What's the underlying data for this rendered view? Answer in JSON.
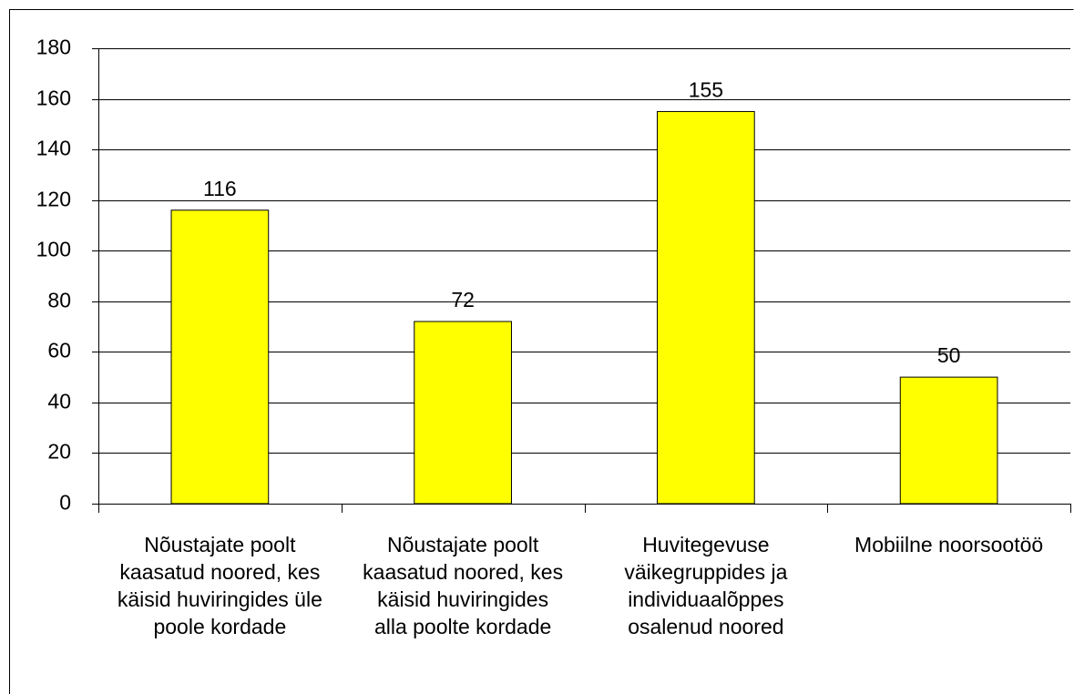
{
  "chart_data": {
    "type": "bar",
    "categories": [
      "Nõustajate poolt kaasatud noored, kes käisid huviringides üle poole kordade",
      "Nõustajate poolt kaasatud noored, kes käisid huviringides alla poolte kordade",
      "Huvitegevuse väikegruppides ja individuaalõppes osalenud noored",
      "Mobiilne noorsootöö"
    ],
    "values": [
      116,
      72,
      155,
      50
    ],
    "color": "#ffff00",
    "ylim": [
      0,
      180
    ],
    "yticks": [
      0,
      20,
      40,
      60,
      80,
      100,
      120,
      140,
      160,
      180
    ],
    "grid": true
  }
}
